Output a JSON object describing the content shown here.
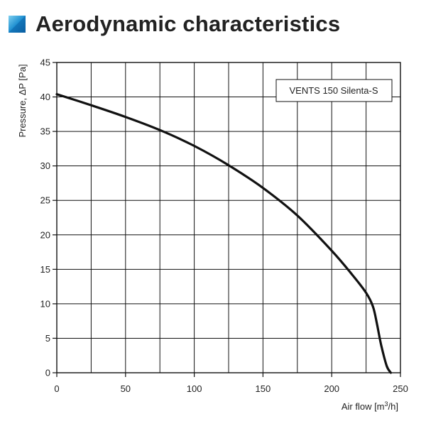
{
  "header": {
    "title": "Aerodynamic characteristics",
    "icon": "blue-square-icon"
  },
  "chart_data": {
    "type": "line",
    "title": "",
    "xlabel": "Air flow [m³/h]",
    "xlabel_parts": [
      "Air flow [m",
      "3",
      "/h]"
    ],
    "ylabel": "Pressure, ΔP [Pa]",
    "xlim": [
      0,
      250
    ],
    "ylim": [
      0,
      45
    ],
    "xticks": [
      0,
      50,
      100,
      150,
      200,
      250
    ],
    "yticks": [
      0,
      5,
      10,
      15,
      20,
      25,
      30,
      35,
      40,
      45
    ],
    "grid": true,
    "legend_position": "top-right",
    "series": [
      {
        "name": "VENTS 150 Silenta-S",
        "color": "#111111",
        "x": [
          0,
          25,
          50,
          75,
          100,
          125,
          150,
          175,
          200,
          215,
          225,
          230,
          233,
          236,
          240,
          243
        ],
        "y": [
          40.4,
          38.8,
          37.1,
          35.2,
          32.9,
          30.1,
          26.8,
          22.8,
          17.7,
          14.2,
          11.6,
          9.6,
          7.0,
          4.0,
          1.0,
          0
        ]
      }
    ]
  }
}
